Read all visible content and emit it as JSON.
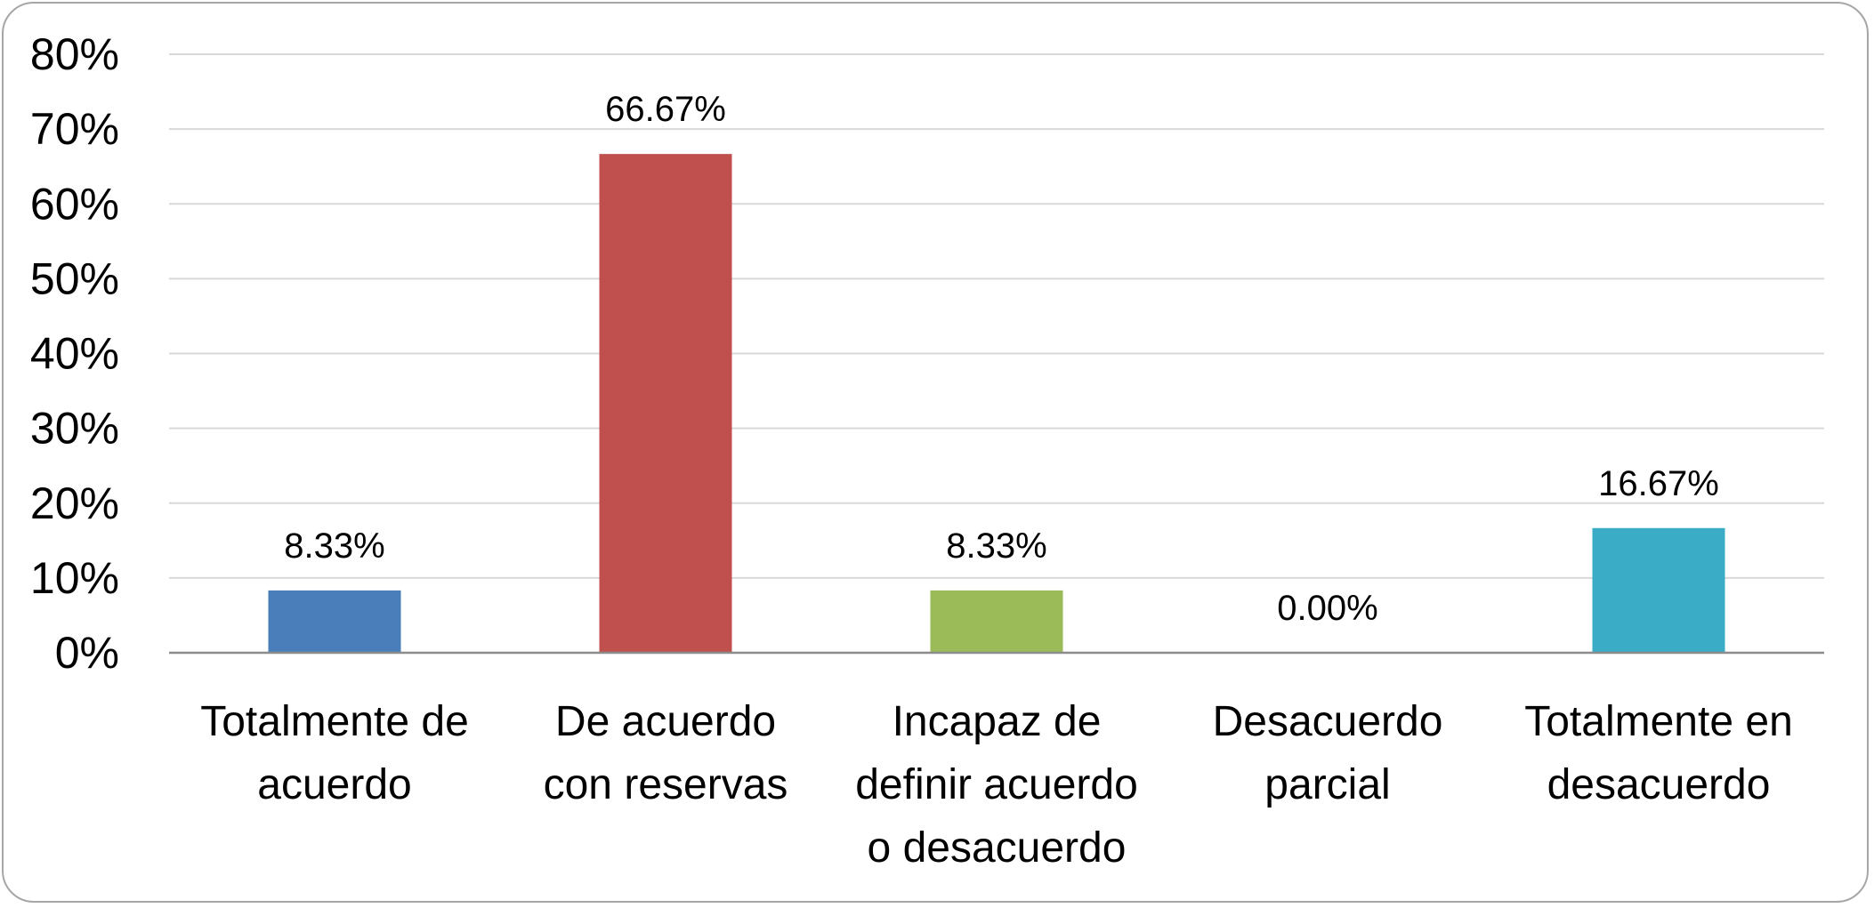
{
  "chart_data": {
    "type": "bar",
    "title": "",
    "xlabel": "",
    "ylabel": "",
    "categories": [
      [
        "Totalmente de",
        "acuerdo"
      ],
      [
        "De acuerdo",
        "con reservas"
      ],
      [
        "Incapaz de",
        "definir acuerdo",
        "o desacuerdo"
      ],
      [
        "Desacuerdo",
        "parcial"
      ],
      [
        "Totalmente en",
        "desacuerdo"
      ]
    ],
    "values": [
      8.33,
      66.67,
      8.33,
      0.0,
      16.67
    ],
    "data_labels": [
      "8.33%",
      "66.67%",
      "8.33%",
      "0.00%",
      "16.67%"
    ],
    "colors": [
      "#4a7ebb",
      "#c0504d",
      "#9bbb59",
      "#8064a2",
      "#3aacc6"
    ],
    "ylim": [
      0,
      80
    ],
    "yticks": [
      0,
      10,
      20,
      30,
      40,
      50,
      60,
      70,
      80
    ],
    "ytick_labels": [
      "0%",
      "10%",
      "20%",
      "30%",
      "40%",
      "50%",
      "60%",
      "70%",
      "80%"
    ],
    "grid": true,
    "legend": "none"
  }
}
